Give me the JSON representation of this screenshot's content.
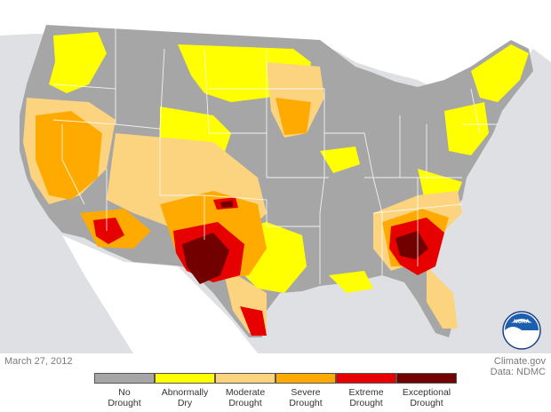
{
  "map": {
    "date": "March 27, 2012",
    "credit_source": "Climate.gov",
    "credit_data": "Data: NDMC",
    "logo_text": "NOAA"
  },
  "legend": {
    "items": [
      {
        "label": "No\nDrought",
        "color": "#a6a6a6"
      },
      {
        "label": "Abnormally\nDry",
        "color": "#ffff00"
      },
      {
        "label": "Moderate\nDrought",
        "color": "#fcd37f"
      },
      {
        "label": "Severe\nDrought",
        "color": "#ffaa00"
      },
      {
        "label": "Extreme\nDrought",
        "color": "#e60000"
      },
      {
        "label": "Exceptional\nDrought",
        "color": "#730000"
      }
    ]
  },
  "colors": {
    "background_land": "#ffffff",
    "ocean": "#dfe0e3",
    "state_border": "#ffffff"
  }
}
